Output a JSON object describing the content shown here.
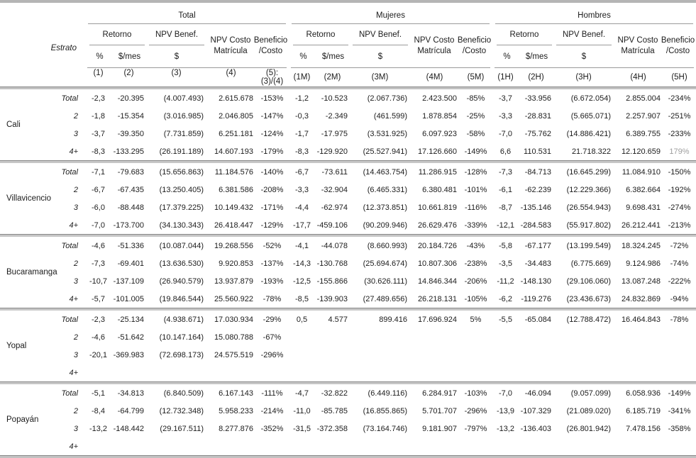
{
  "table": {
    "header": {
      "estrato": "Estrato",
      "groups": [
        {
          "label": "Total",
          "cols": [
            "(1)",
            "(2)",
            "(3)",
            "(4)",
            "(5):(3)/(4)"
          ]
        },
        {
          "label": "Mujeres",
          "cols": [
            "(1M)",
            "(2M)",
            "(3M)",
            "(4M)",
            "(5M)"
          ]
        },
        {
          "label": "Hombres",
          "cols": [
            "(1H)",
            "(2H)",
            "(3H)",
            "(4H)",
            "(5H)"
          ]
        }
      ],
      "sub": {
        "retorno": "Retorno",
        "pct": "%",
        "mes": "$/mes",
        "npv_benef": "NPV Benef.",
        "dollar": "$",
        "npv_costo_line1": "NPV Costo",
        "npv_costo_line2": "Matrícula",
        "ratio_line1": "Beneficio",
        "ratio_line2": "/Costo"
      }
    },
    "groups": [
      {
        "city": "Cali",
        "rows": [
          {
            "estrato": "Total",
            "cells": [
              "-2,3",
              "-20.395",
              "(4.007.493)",
              "2.615.678",
              "-153%",
              "-1,2",
              "-10.523",
              "(2.067.736)",
              "2.423.500",
              "-85%",
              "-3,7",
              "-33.956",
              "(6.672.054)",
              "2.855.004",
              "-234%"
            ]
          },
          {
            "estrato": "2",
            "cells": [
              "-1,8",
              "-15.354",
              "(3.016.985)",
              "2.046.805",
              "-147%",
              "-0,3",
              "-2.349",
              "(461.599)",
              "1.878.854",
              "-25%",
              "-3,3",
              "-28.831",
              "(5.665.071)",
              "2.257.907",
              "-251%"
            ]
          },
          {
            "estrato": "3",
            "cells": [
              "-3,7",
              "-39.350",
              "(7.731.859)",
              "6.251.181",
              "-124%",
              "-1,7",
              "-17.975",
              "(3.531.925)",
              "6.097.923",
              "-58%",
              "-7,0",
              "-75.762",
              "(14.886.421)",
              "6.389.755",
              "-233%"
            ]
          },
          {
            "estrato": "4+",
            "cells": [
              "-8,3",
              "-133.295",
              "(26.191.189)",
              "14.607.193",
              "-179%",
              "-8,3",
              "-129.920",
              "(25.527.941)",
              "17.126.660",
              "-149%",
              "6,6",
              "110.531",
              "21.718.322",
              "12.120.659",
              "179%"
            ],
            "muted": [
              14
            ]
          }
        ]
      },
      {
        "city": "Villavicencio",
        "rows": [
          {
            "estrato": "Total",
            "cells": [
              "-7,1",
              "-79.683",
              "(15.656.863)",
              "11.184.576",
              "-140%",
              "-6,7",
              "-73.611",
              "(14.463.754)",
              "11.286.915",
              "-128%",
              "-7,3",
              "-84.713",
              "(16.645.299)",
              "11.084.910",
              "-150%"
            ]
          },
          {
            "estrato": "2",
            "cells": [
              "-6,7",
              "-67.435",
              "(13.250.405)",
              "6.381.586",
              "-208%",
              "-3,3",
              "-32.904",
              "(6.465.331)",
              "6.380.481",
              "-101%",
              "-6,1",
              "-62.239",
              "(12.229.366)",
              "6.382.664",
              "-192%"
            ]
          },
          {
            "estrato": "3",
            "cells": [
              "-6,0",
              "-88.448",
              "(17.379.225)",
              "10.149.432",
              "-171%",
              "-4,4",
              "-62.974",
              "(12.373.851)",
              "10.661.819",
              "-116%",
              "-8,7",
              "-135.146",
              "(26.554.943)",
              "9.698.431",
              "-274%"
            ]
          },
          {
            "estrato": "4+",
            "cells": [
              "-7,0",
              "-173.700",
              "(34.130.343)",
              "26.418.447",
              "-129%",
              "-17,7",
              "-459.106",
              "(90.209.946)",
              "26.629.476",
              "-339%",
              "-12,1",
              "-284.583",
              "(55.917.802)",
              "26.212.441",
              "-213%"
            ]
          }
        ]
      },
      {
        "city": "Bucaramanga",
        "rows": [
          {
            "estrato": "Total",
            "cells": [
              "-4,6",
              "-51.336",
              "(10.087.044)",
              "19.268.556",
              "-52%",
              "-4,1",
              "-44.078",
              "(8.660.993)",
              "20.184.726",
              "-43%",
              "-5,8",
              "-67.177",
              "(13.199.549)",
              "18.324.245",
              "-72%"
            ]
          },
          {
            "estrato": "2",
            "cells": [
              "-7,3",
              "-69.401",
              "(13.636.530)",
              "9.920.853",
              "-137%",
              "-14,3",
              "-130.768",
              "(25.694.674)",
              "10.807.306",
              "-238%",
              "-3,5",
              "-34.483",
              "(6.775.669)",
              "9.124.986",
              "-74%"
            ]
          },
          {
            "estrato": "3",
            "cells": [
              "-10,7",
              "-137.109",
              "(26.940.579)",
              "13.937.879",
              "-193%",
              "-12,5",
              "-155.866",
              "(30.626.111)",
              "14.846.344",
              "-206%",
              "-11,2",
              "-148.130",
              "(29.106.060)",
              "13.087.248",
              "-222%"
            ]
          },
          {
            "estrato": "4+",
            "cells": [
              "-5,7",
              "-101.005",
              "(19.846.544)",
              "25.560.922",
              "-78%",
              "-8,5",
              "-139.903",
              "(27.489.656)",
              "26.218.131",
              "-105%",
              "-6,2",
              "-119.276",
              "(23.436.673)",
              "24.832.869",
              "-94%"
            ]
          }
        ]
      },
      {
        "city": "Yopal",
        "rows": [
          {
            "estrato": "Total",
            "cells": [
              "-2,3",
              "-25.134",
              "(4.938.671)",
              "17.030.934",
              "-29%",
              "0,5",
              "4.577",
              "899.416",
              "17.696.924",
              "5%",
              "-5,5",
              "-65.084",
              "(12.788.472)",
              "16.464.843",
              "-78%"
            ]
          },
          {
            "estrato": "2",
            "cells": [
              "-4,6",
              "-51.642",
              "(10.147.164)",
              "15.080.788",
              "-67%",
              "",
              "",
              "",
              "",
              "",
              "",
              "",
              "",
              "",
              ""
            ]
          },
          {
            "estrato": "3",
            "cells": [
              "-20,1",
              "-369.983",
              "(72.698.173)",
              "24.575.519",
              "-296%",
              "",
              "",
              "",
              "",
              "",
              "",
              "",
              "",
              "",
              ""
            ]
          },
          {
            "estrato": "4+",
            "cells": [
              "",
              "",
              "",
              "",
              "",
              "",
              "",
              "",
              "",
              "",
              "",
              "",
              "",
              "",
              ""
            ]
          }
        ]
      },
      {
        "city": "Popayán",
        "rows": [
          {
            "estrato": "Total",
            "cells": [
              "-5,1",
              "-34.813",
              "(6.840.509)",
              "6.167.143",
              "-111%",
              "-4,7",
              "-32.822",
              "(6.449.116)",
              "6.284.917",
              "-103%",
              "-7,0",
              "-46.094",
              "(9.057.099)",
              "6.058.936",
              "-149%"
            ]
          },
          {
            "estrato": "2",
            "cells": [
              "-8,4",
              "-64.799",
              "(12.732.348)",
              "5.958.233",
              "-214%",
              "-11,0",
              "-85.785",
              "(16.855.865)",
              "5.701.707",
              "-296%",
              "-13,9",
              "-107.329",
              "(21.089.020)",
              "6.185.719",
              "-341%"
            ]
          },
          {
            "estrato": "3",
            "cells": [
              "-13,2",
              "-148.442",
              "(29.167.511)",
              "8.277.876",
              "-352%",
              "-31,5",
              "-372.358",
              "(73.164.746)",
              "9.181.907",
              "-797%",
              "-13,2",
              "-136.403",
              "(26.801.942)",
              "7.478.156",
              "-358%"
            ]
          },
          {
            "estrato": "4+",
            "cells": [
              "",
              "",
              "",
              "",
              "",
              "",
              "",
              "",
              "",
              "",
              "",
              "",
              "",
              "",
              ""
            ]
          }
        ]
      }
    ],
    "colors": {
      "text": "#1c1c1c",
      "muted_value": "#9e9e9e",
      "rule_gray": "#b5b5b5",
      "rule_dark_edge": "#8a8a8a",
      "rule_thin": "#9a9a9a"
    }
  }
}
